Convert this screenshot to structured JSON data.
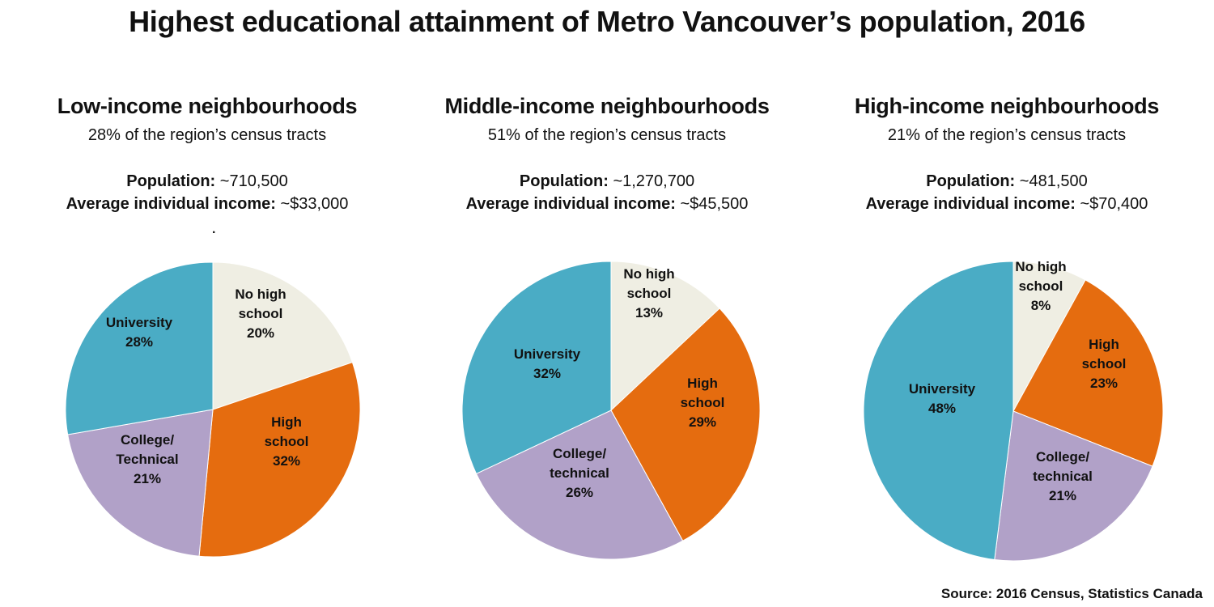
{
  "title": "Highest educational attainment of Metro Vancouver’s population, 2016",
  "source": "Source: 2016 Census, Statistics Canada",
  "stray_mark": ".",
  "labels": {
    "population": "Population:",
    "income": "Average individual income:"
  },
  "colors": {
    "no_high_school": "#efeee3",
    "high_school": "#e56c0f",
    "college": "#b1a1c8",
    "university": "#4aacc5"
  },
  "chart_data": [
    {
      "type": "pie",
      "title": "Low-income neighbourhoods",
      "subtitle": "28% of the region’s census tracts",
      "population": "~710,500",
      "income": "~$33,000",
      "slices": [
        {
          "key": "no_high_school",
          "label_lines": [
            "No high",
            "school",
            "20%"
          ],
          "value": 20
        },
        {
          "key": "high_school",
          "label_lines": [
            "High",
            "school",
            "32%"
          ],
          "value": 32
        },
        {
          "key": "college",
          "label_lines": [
            "College/",
            "Technical",
            "21%"
          ],
          "value": 21
        },
        {
          "key": "university",
          "label_lines": [
            "University",
            "28%"
          ],
          "value": 28
        }
      ]
    },
    {
      "type": "pie",
      "title": "Middle-income neighbourhoods",
      "subtitle": "51% of the region’s census tracts",
      "population": "~1,270,700",
      "income": "~$45,500",
      "slices": [
        {
          "key": "no_high_school",
          "label_lines": [
            "No high",
            "school",
            "13%"
          ],
          "value": 13
        },
        {
          "key": "high_school",
          "label_lines": [
            "High",
            "school",
            "29%"
          ],
          "value": 29
        },
        {
          "key": "college",
          "label_lines": [
            "College/",
            "technical",
            "26%"
          ],
          "value": 26
        },
        {
          "key": "university",
          "label_lines": [
            "University",
            "32%"
          ],
          "value": 32
        }
      ]
    },
    {
      "type": "pie",
      "title": "High-income neighbourhoods",
      "subtitle": "21% of the region’s census tracts",
      "population": "~481,500",
      "income": "~$70,400",
      "slices": [
        {
          "key": "no_high_school",
          "label_lines": [
            "No high",
            "school",
            "8%"
          ],
          "value": 8
        },
        {
          "key": "high_school",
          "label_lines": [
            "High",
            "school",
            "23%"
          ],
          "value": 23
        },
        {
          "key": "college",
          "label_lines": [
            "College/",
            "technical",
            "21%"
          ],
          "value": 21
        },
        {
          "key": "university",
          "label_lines": [
            "University",
            "48%"
          ],
          "value": 48
        }
      ]
    }
  ]
}
